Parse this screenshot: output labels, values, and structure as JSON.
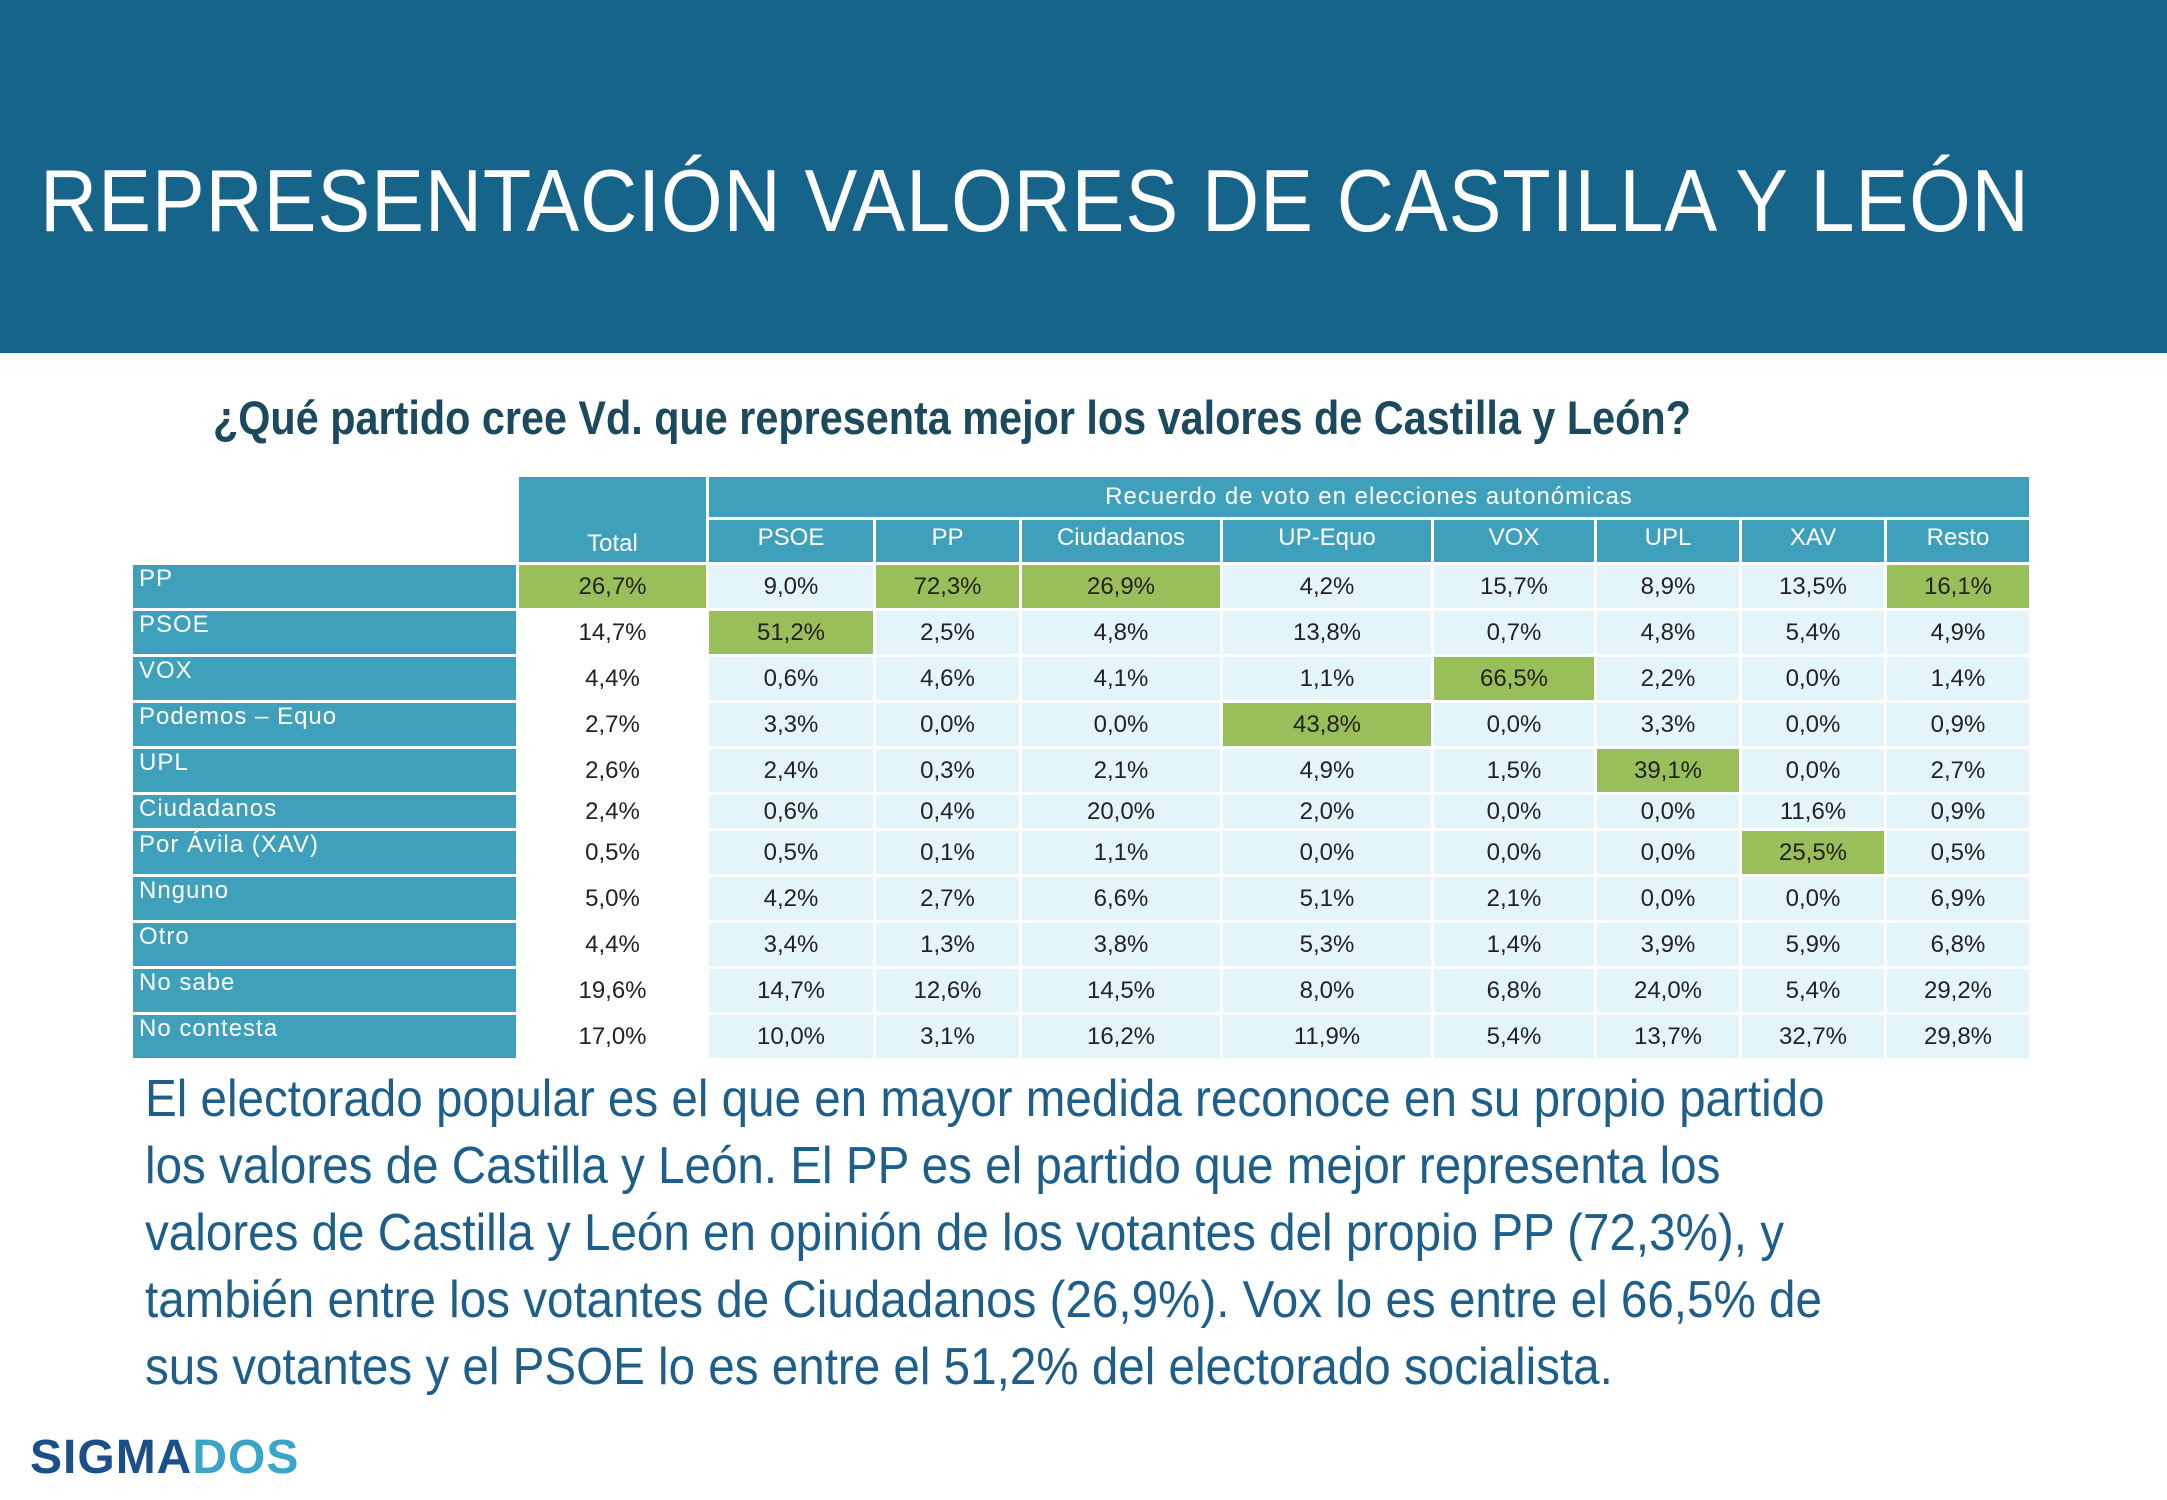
{
  "title": "REPRESENTACIÓN VALORES DE CASTILLA Y LEÓN",
  "question": "¿Qué partido cree Vd. que representa mejor los valores de Castilla y León?",
  "table": {
    "group_header": "Recuerdo de voto en elecciones autonómicas",
    "total_label": "Total",
    "columns": [
      "PSOE",
      "PP",
      "Ciudadanos",
      "UP-Equo",
      "VOX",
      "UPL",
      "XAV",
      "Resto"
    ],
    "rows": [
      {
        "label": "PP",
        "values": [
          "26,7%",
          "9,0%",
          "72,3%",
          "26,9%",
          "4,2%",
          "15,7%",
          "8,9%",
          "13,5%",
          "16,1%"
        ],
        "highlight": [
          0,
          2,
          3,
          8
        ]
      },
      {
        "label": "PSOE",
        "values": [
          "14,7%",
          "51,2%",
          "2,5%",
          "4,8%",
          "13,8%",
          "0,7%",
          "4,8%",
          "5,4%",
          "4,9%"
        ],
        "highlight": [
          1
        ]
      },
      {
        "label": "VOX",
        "values": [
          "4,4%",
          "0,6%",
          "4,6%",
          "4,1%",
          "1,1%",
          "66,5%",
          "2,2%",
          "0,0%",
          "1,4%"
        ],
        "highlight": [
          5
        ]
      },
      {
        "label": "Podemos – Equo",
        "values": [
          "2,7%",
          "3,3%",
          "0,0%",
          "0,0%",
          "43,8%",
          "0,0%",
          "3,3%",
          "0,0%",
          "0,9%"
        ],
        "highlight": [
          4
        ]
      },
      {
        "label": "UPL",
        "values": [
          "2,6%",
          "2,4%",
          "0,3%",
          "2,1%",
          "4,9%",
          "1,5%",
          "39,1%",
          "0,0%",
          "2,7%"
        ],
        "highlight": [
          6
        ]
      },
      {
        "label": "Ciudadanos",
        "values": [
          "2,4%",
          "0,6%",
          "0,4%",
          "20,0%",
          "2,0%",
          "0,0%",
          "0,0%",
          "11,6%",
          "0,9%"
        ],
        "highlight": []
      },
      {
        "label": "Por Ávila (XAV)",
        "values": [
          "0,5%",
          "0,5%",
          "0,1%",
          "1,1%",
          "0,0%",
          "0,0%",
          "0,0%",
          "25,5%",
          "0,5%"
        ],
        "highlight": [
          7
        ]
      },
      {
        "label": "Nnguno",
        "values": [
          "5,0%",
          "4,2%",
          "2,7%",
          "6,6%",
          "5,1%",
          "2,1%",
          "0,0%",
          "0,0%",
          "6,9%"
        ],
        "highlight": []
      },
      {
        "label": "Otro",
        "values": [
          "4,4%",
          "3,4%",
          "1,3%",
          "3,8%",
          "5,3%",
          "1,4%",
          "3,9%",
          "5,9%",
          "6,8%"
        ],
        "highlight": []
      },
      {
        "label": "No sabe",
        "values": [
          "19,6%",
          "14,7%",
          "12,6%",
          "14,5%",
          "8,0%",
          "6,8%",
          "24,0%",
          "5,4%",
          "29,2%"
        ],
        "highlight": []
      },
      {
        "label": "No contesta",
        "values": [
          "17,0%",
          "10,0%",
          "3,1%",
          "16,2%",
          "11,9%",
          "5,4%",
          "13,7%",
          "32,7%",
          "29,8%"
        ],
        "highlight": []
      }
    ]
  },
  "summary": "El electorado popular es el que en mayor medida reconoce en su propio partido los valores de Castilla y León. El PP es el partido que mejor representa los valores de Castilla y León en opinión de los votantes del propio PP (72,3%), y también entre los votantes de Ciudadanos (26,9%). Vox lo es entre el 66,5% de sus votantes y el PSOE lo es entre el 51,2% del electorado socialista.",
  "logo": {
    "part1": "SIGMA",
    "part2": "DOS"
  },
  "colors": {
    "banner": "#17648a",
    "header_cell": "#3fa0bc",
    "data_cell": "#e3f4fb",
    "highlight": "#99bf5a",
    "summary_text": "#1d5f8a"
  }
}
